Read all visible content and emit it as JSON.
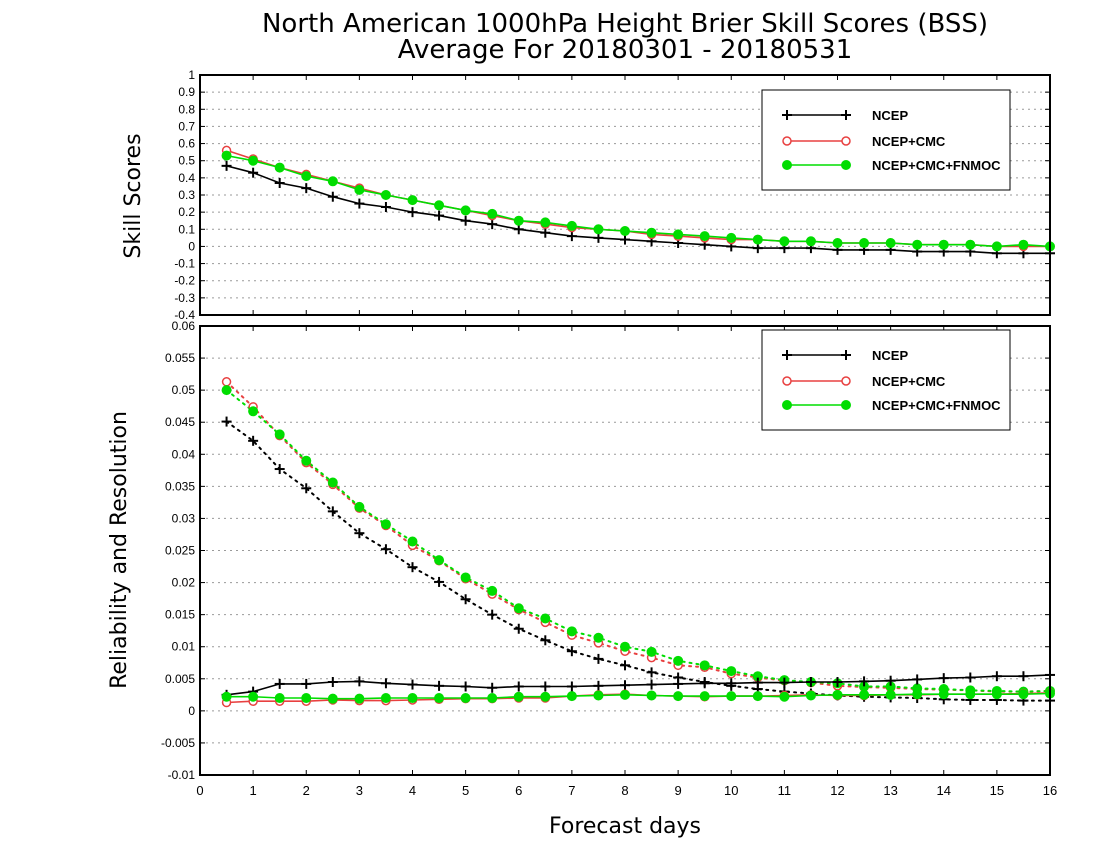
{
  "colors": {
    "ncep": "#000000",
    "ncep_cmc": "#e84040",
    "ncep_cmc_fnmoc": "#00dd00"
  },
  "chart_data": [
    {
      "type": "line",
      "title": "North American 1000hPa Height Brier Skill Scores (BSS)",
      "subtitle": "Average For 20180301 - 20180531",
      "xlabel": "Forecast days",
      "ylabel": "Skill Scores",
      "xlim": [
        0,
        16
      ],
      "ylim": [
        -0.4,
        1
      ],
      "ytick_labels": [
        "1",
        "0.9",
        "0.8",
        "0.7",
        "0.6",
        "0.5",
        "0.4",
        "0.3",
        "0.2",
        "0.1",
        "0",
        "-0.1",
        "-0.2",
        "-0.3",
        "-0.4"
      ],
      "grid": true,
      "legend_position": "top-right",
      "x": [
        0.5,
        1,
        1.5,
        2,
        2.5,
        3,
        3.5,
        4,
        4.5,
        5,
        5.5,
        6,
        6.5,
        7,
        7.5,
        8,
        8.5,
        9,
        9.5,
        10,
        10.5,
        11,
        11.5,
        12,
        12.5,
        13,
        13.5,
        14,
        14.5,
        15,
        15.5,
        16
      ],
      "series": [
        {
          "name": "NCEP",
          "marker": "plus",
          "style": "solid",
          "values": [
            0.47,
            0.43,
            0.37,
            0.34,
            0.29,
            0.25,
            0.23,
            0.2,
            0.18,
            0.15,
            0.13,
            0.1,
            0.08,
            0.06,
            0.05,
            0.04,
            0.03,
            0.02,
            0.01,
            0.0,
            -0.01,
            -0.01,
            -0.01,
            -0.02,
            -0.02,
            -0.02,
            -0.03,
            -0.03,
            -0.03,
            -0.04,
            -0.04,
            -0.04
          ]
        },
        {
          "name": "NCEP+CMC",
          "marker": "open-circle",
          "style": "solid",
          "values": [
            0.56,
            0.51,
            0.46,
            0.42,
            0.38,
            0.34,
            0.3,
            0.27,
            0.24,
            0.21,
            0.18,
            0.15,
            0.13,
            0.11,
            0.1,
            0.09,
            0.07,
            0.06,
            0.05,
            0.04,
            0.04,
            0.03,
            0.03,
            0.02,
            0.02,
            0.02,
            0.01,
            0.01,
            0.01,
            0.0,
            0.0,
            0.0
          ]
        },
        {
          "name": "NCEP+CMC+FNMOC",
          "marker": "filled-circle",
          "style": "solid",
          "values": [
            0.53,
            0.5,
            0.46,
            0.41,
            0.38,
            0.33,
            0.3,
            0.27,
            0.24,
            0.21,
            0.19,
            0.15,
            0.14,
            0.12,
            0.1,
            0.09,
            0.08,
            0.07,
            0.06,
            0.05,
            0.04,
            0.03,
            0.03,
            0.02,
            0.02,
            0.02,
            0.01,
            0.01,
            0.01,
            0.0,
            0.01,
            0.0
          ]
        }
      ]
    },
    {
      "type": "line",
      "xlabel": "Forecast days",
      "ylabel": "Reliability and Resolution",
      "xlim": [
        0,
        16
      ],
      "ylim": [
        -0.01,
        0.06
      ],
      "ytick_labels": [
        "0.06",
        "0.055",
        "0.05",
        "0.045",
        "0.04",
        "0.035",
        "0.03",
        "0.025",
        "0.02",
        "0.015",
        "0.01",
        "0.005",
        "0",
        "-0.005",
        "-0.01"
      ],
      "xtick_labels": [
        "0",
        "1",
        "2",
        "3",
        "4",
        "5",
        "6",
        "7",
        "8",
        "9",
        "10",
        "11",
        "12",
        "13",
        "14",
        "15",
        "16"
      ],
      "grid": true,
      "legend_position": "top-right",
      "x": [
        0.5,
        1,
        1.5,
        2,
        2.5,
        3,
        3.5,
        4,
        4.5,
        5,
        5.5,
        6,
        6.5,
        7,
        7.5,
        8,
        8.5,
        9,
        9.5,
        10,
        10.5,
        11,
        11.5,
        12,
        12.5,
        13,
        13.5,
        14,
        14.5,
        15,
        15.5,
        16
      ],
      "series": [
        {
          "name": "NCEP",
          "marker": "plus",
          "style": "dotted",
          "values": [
            0.0451,
            0.0421,
            0.0377,
            0.0347,
            0.0311,
            0.0277,
            0.0252,
            0.0224,
            0.0201,
            0.0174,
            0.015,
            0.0128,
            0.011,
            0.0093,
            0.0081,
            0.0071,
            0.006,
            0.0052,
            0.0045,
            0.0039,
            0.0034,
            0.003,
            0.0027,
            0.0024,
            0.0022,
            0.0021,
            0.002,
            0.0018,
            0.0017,
            0.0017,
            0.0016,
            0.0016
          ]
        },
        {
          "name": "NCEP+CMC",
          "marker": "open-circle",
          "style": "dotted",
          "values": [
            0.0513,
            0.0474,
            0.0429,
            0.0387,
            0.0353,
            0.0316,
            0.0289,
            0.0258,
            0.0234,
            0.0206,
            0.0182,
            0.0158,
            0.0138,
            0.0118,
            0.0106,
            0.0093,
            0.0083,
            0.0071,
            0.0068,
            0.0058,
            0.0052,
            0.0047,
            0.0044,
            0.0039,
            0.0037,
            0.0036,
            0.0034,
            0.0033,
            0.0032,
            0.003,
            0.003,
            0.0031
          ]
        },
        {
          "name": "NCEP+CMC+FNMOC",
          "marker": "filled-circle",
          "style": "dotted",
          "values": [
            0.05,
            0.0467,
            0.0431,
            0.039,
            0.0356,
            0.0318,
            0.0291,
            0.0264,
            0.0235,
            0.0208,
            0.0187,
            0.016,
            0.0144,
            0.0124,
            0.0114,
            0.01,
            0.0092,
            0.0078,
            0.0071,
            0.0062,
            0.0054,
            0.0048,
            0.0045,
            0.0043,
            0.0038,
            0.0038,
            0.0035,
            0.0034,
            0.0032,
            0.0031,
            0.003,
            0.0031
          ]
        },
        {
          "name": "NCEP",
          "marker": "plus",
          "style": "solid",
          "values": [
            0.0025,
            0.003,
            0.0042,
            0.0042,
            0.0045,
            0.0046,
            0.0043,
            0.0041,
            0.0039,
            0.0038,
            0.0036,
            0.0038,
            0.0038,
            0.0038,
            0.0039,
            0.004,
            0.0041,
            0.0042,
            0.0043,
            0.0043,
            0.0044,
            0.0044,
            0.0045,
            0.0045,
            0.0046,
            0.0047,
            0.0049,
            0.0051,
            0.0052,
            0.0054,
            0.0054,
            0.0056
          ]
        },
        {
          "name": "NCEP+CMC",
          "marker": "open-circle",
          "style": "solid",
          "values": [
            0.0013,
            0.0015,
            0.0015,
            0.0015,
            0.0017,
            0.0016,
            0.0016,
            0.0017,
            0.0018,
            0.0019,
            0.0019,
            0.002,
            0.002,
            0.0023,
            0.0025,
            0.0026,
            0.0024,
            0.0023,
            0.0022,
            0.0023,
            0.0023,
            0.0024,
            0.0025,
            0.0024,
            0.0024,
            0.0025,
            0.0025,
            0.0026,
            0.0026,
            0.0026,
            0.0027,
            0.0028
          ]
        },
        {
          "name": "NCEP+CMC+FNMOC",
          "marker": "filled-circle",
          "style": "solid",
          "values": [
            0.0022,
            0.0022,
            0.002,
            0.002,
            0.0019,
            0.0019,
            0.002,
            0.002,
            0.002,
            0.002,
            0.002,
            0.0022,
            0.0022,
            0.0023,
            0.0024,
            0.0025,
            0.0024,
            0.0023,
            0.0023,
            0.0023,
            0.0023,
            0.0022,
            0.0024,
            0.0025,
            0.0025,
            0.0025,
            0.0026,
            0.0026,
            0.0026,
            0.0026,
            0.0026,
            0.0027
          ]
        }
      ]
    }
  ]
}
